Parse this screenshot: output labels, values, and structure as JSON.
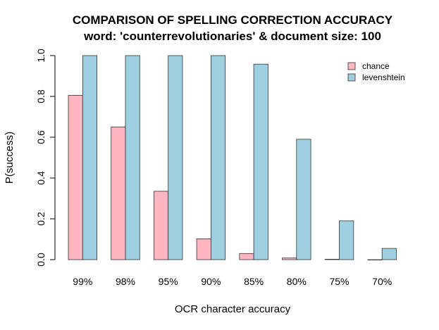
{
  "chart_data": {
    "type": "bar",
    "title": "COMPARISON OF SPELLING CORRECTION ACCURACY",
    "subtitle": "word: 'counterrevolutionaries' & document size: 100",
    "xlabel": "OCR character accuracy",
    "ylabel": "P(success)",
    "ylim": [
      0,
      1.0
    ],
    "yticks": [
      "0.0",
      "0.2",
      "0.4",
      "0.6",
      "0.8",
      "1.0"
    ],
    "categories": [
      "99%",
      "98%",
      "95%",
      "90%",
      "85%",
      "80%",
      "75%",
      "70%"
    ],
    "series": [
      {
        "name": "chance",
        "color": "#ffb6c1",
        "values": [
          0.805,
          0.65,
          0.335,
          0.102,
          0.03,
          0.008,
          0.002,
          0.0
        ]
      },
      {
        "name": "levenshtein",
        "color": "#9ecfe0",
        "values": [
          1.0,
          1.0,
          1.0,
          1.0,
          0.958,
          0.59,
          0.19,
          0.055
        ]
      }
    ],
    "legend_position": "top-right",
    "grid": false
  }
}
